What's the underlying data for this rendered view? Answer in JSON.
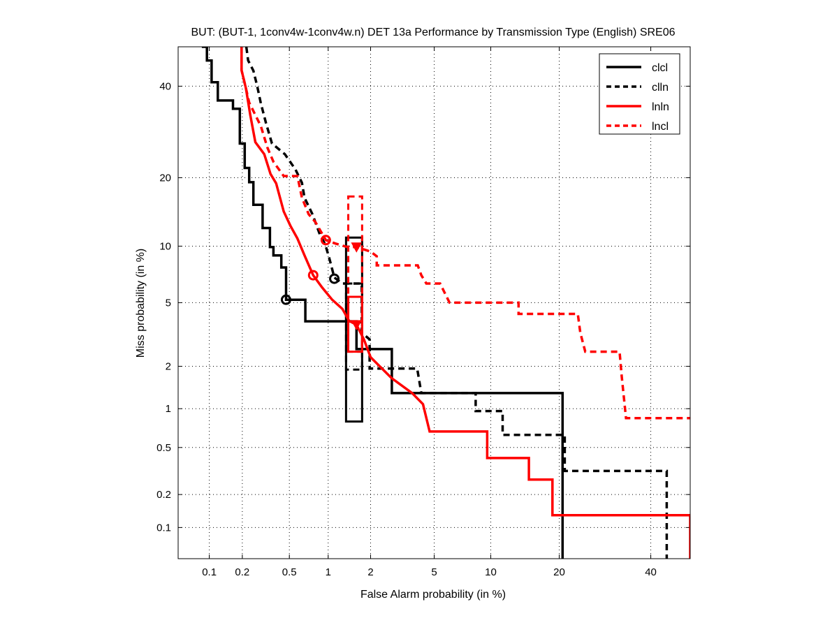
{
  "chart_data": {
    "type": "line",
    "title": "BUT: (BUT-1, 1conv4w-1conv4w.n) DET 13a Performance by Transmission Type (English) SRE06",
    "xlabel": "False Alarm probability (in %)",
    "ylabel": "Miss probability (in %)",
    "xscale": "normal-deviate",
    "yscale": "normal-deviate",
    "xlim": [
      0.05,
      50
    ],
    "ylim": [
      0.05,
      50
    ],
    "xticks": [
      0.1,
      0.2,
      0.5,
      1,
      2,
      5,
      10,
      20,
      40
    ],
    "xtick_labels": [
      "0.1",
      "0.2",
      "0.5",
      "1",
      "2",
      "5",
      "10",
      "20",
      "40"
    ],
    "yticks": [
      0.1,
      0.2,
      0.5,
      1,
      2,
      5,
      10,
      20,
      40
    ],
    "ytick_labels": [
      "0.1",
      "0.2",
      "0.5",
      "1",
      "2",
      "5",
      "10",
      "20",
      "40"
    ],
    "grid": true,
    "legend_position": "top-right",
    "series": [
      {
        "name": "clcl",
        "color": "#000000",
        "style": "solid",
        "points": [
          [
            0.085,
            50
          ],
          [
            0.095,
            50
          ],
          [
            0.095,
            46.5
          ],
          [
            0.105,
            46.5
          ],
          [
            0.105,
            41
          ],
          [
            0.12,
            41
          ],
          [
            0.12,
            36.5
          ],
          [
            0.165,
            36.5
          ],
          [
            0.165,
            34.5
          ],
          [
            0.19,
            34.5
          ],
          [
            0.19,
            26.7
          ],
          [
            0.21,
            26.7
          ],
          [
            0.21,
            21.8
          ],
          [
            0.23,
            21.8
          ],
          [
            0.23,
            19.2
          ],
          [
            0.25,
            19.2
          ],
          [
            0.25,
            15.5
          ],
          [
            0.3,
            15.5
          ],
          [
            0.3,
            12.2
          ],
          [
            0.346,
            12.2
          ],
          [
            0.346,
            9.9
          ],
          [
            0.37,
            9.9
          ],
          [
            0.37,
            9.0
          ],
          [
            0.43,
            9.0
          ],
          [
            0.43,
            7.8
          ],
          [
            0.47,
            7.8
          ],
          [
            0.47,
            5.2
          ],
          [
            0.67,
            5.2
          ],
          [
            0.67,
            3.88
          ],
          [
            1.6,
            3.88
          ],
          [
            1.6,
            2.6
          ],
          [
            2.76,
            2.6
          ],
          [
            2.76,
            1.3
          ],
          [
            20.6,
            1.3
          ],
          [
            20.6,
            0.05
          ]
        ],
        "min_dcf_point": [
          0.47,
          5.2
        ],
        "confidence_box": {
          "x": [
            1.35,
            1.75
          ],
          "y": [
            0.8,
            11
          ]
        }
      },
      {
        "name": "clln",
        "color": "#000000",
        "style": "dashed",
        "points": [
          [
            0.217,
            50
          ],
          [
            0.225,
            46.5
          ],
          [
            0.25,
            43.9
          ],
          [
            0.27,
            40
          ],
          [
            0.29,
            35.8
          ],
          [
            0.32,
            31.3
          ],
          [
            0.36,
            26.7
          ],
          [
            0.46,
            24.5
          ],
          [
            0.56,
            21.5
          ],
          [
            0.63,
            19.1
          ],
          [
            0.66,
            16.6
          ],
          [
            0.76,
            14.1
          ],
          [
            0.87,
            11.3
          ],
          [
            0.95,
            10.2
          ],
          [
            1.02,
            8.7
          ],
          [
            1.11,
            6.9
          ],
          [
            1.27,
            6.4
          ],
          [
            1.74,
            6.4
          ],
          [
            1.74,
            3.3
          ],
          [
            1.97,
            3.0
          ],
          [
            1.97,
            1.93
          ],
          [
            3.97,
            1.93
          ],
          [
            4.2,
            1.3
          ],
          [
            8.4,
            1.3
          ],
          [
            8.4,
            0.96
          ],
          [
            11.4,
            0.96
          ],
          [
            11.4,
            0.63
          ],
          [
            21,
            0.63
          ],
          [
            21,
            0.32
          ],
          [
            44,
            0.32
          ],
          [
            44,
            0.05
          ]
        ],
        "min_dcf_point": [
          1.11,
          6.8
        ],
        "confidence_box": {
          "x": [
            1.35,
            1.75
          ],
          "y": [
            1.9,
            6.4
          ]
        }
      },
      {
        "name": "lnln",
        "color": "#ff0000",
        "style": "solid",
        "points": [
          [
            0.197,
            50
          ],
          [
            0.197,
            44
          ],
          [
            0.215,
            39.5
          ],
          [
            0.235,
            33
          ],
          [
            0.26,
            27
          ],
          [
            0.31,
            24.5
          ],
          [
            0.35,
            20.7
          ],
          [
            0.39,
            19
          ],
          [
            0.45,
            14.5
          ],
          [
            0.51,
            12.5
          ],
          [
            0.58,
            10.9
          ],
          [
            0.66,
            9.0
          ],
          [
            0.77,
            7.1
          ],
          [
            0.9,
            6.1
          ],
          [
            1.07,
            5.2
          ],
          [
            1.27,
            4.6
          ],
          [
            1.42,
            3.9
          ],
          [
            1.6,
            3.7
          ],
          [
            1.8,
            3.0
          ],
          [
            2.0,
            2.3
          ],
          [
            2.3,
            2.0
          ],
          [
            2.75,
            1.66
          ],
          [
            3.7,
            1.3
          ],
          [
            4.3,
            1.08
          ],
          [
            4.7,
            0.67
          ],
          [
            9.6,
            0.67
          ],
          [
            9.6,
            0.41
          ],
          [
            15,
            0.41
          ],
          [
            15,
            0.27
          ],
          [
            18.8,
            0.27
          ],
          [
            18.8,
            0.13
          ],
          [
            50,
            0.13
          ],
          [
            50,
            0.05
          ]
        ],
        "min_dcf_point": [
          0.77,
          7.1
        ],
        "act_dcf_point": [
          1.6,
          3.7
        ],
        "confidence_box": {
          "x": [
            1.4,
            1.75
          ],
          "y": [
            2.5,
            5.4
          ]
        }
      },
      {
        "name": "lncl",
        "color": "#ff0000",
        "style": "dashed",
        "points": [
          [
            0.197,
            50
          ],
          [
            0.197,
            44
          ],
          [
            0.215,
            39.5
          ],
          [
            0.23,
            36
          ],
          [
            0.29,
            30.5
          ],
          [
            0.33,
            25.8
          ],
          [
            0.37,
            23
          ],
          [
            0.45,
            20.3
          ],
          [
            0.58,
            20.3
          ],
          [
            0.63,
            16.6
          ],
          [
            0.71,
            14.1
          ],
          [
            0.8,
            13
          ],
          [
            0.96,
            10.7
          ],
          [
            1.13,
            10.3
          ],
          [
            1.38,
            9.9
          ],
          [
            1.6,
            9.9
          ],
          [
            2.0,
            9.4
          ],
          [
            2.2,
            8.9
          ],
          [
            2.2,
            8.0
          ],
          [
            4.0,
            8.0
          ],
          [
            4.2,
            7.1
          ],
          [
            4.5,
            6.4
          ],
          [
            5.4,
            6.4
          ],
          [
            6.1,
            5.0
          ],
          [
            13.5,
            5.0
          ],
          [
            13.5,
            4.3
          ],
          [
            23.5,
            4.3
          ],
          [
            24,
            3.3
          ],
          [
            25,
            2.5
          ],
          [
            32.5,
            2.5
          ],
          [
            33,
            1.7
          ],
          [
            34,
            0.85
          ],
          [
            50,
            0.85
          ]
        ],
        "min_dcf_point": [
          0.96,
          10.7
        ],
        "act_dcf_point": [
          1.6,
          9.9
        ],
        "confidence_box": {
          "x": [
            1.4,
            1.75
          ],
          "y": [
            2.5,
            16.8
          ]
        }
      }
    ]
  }
}
